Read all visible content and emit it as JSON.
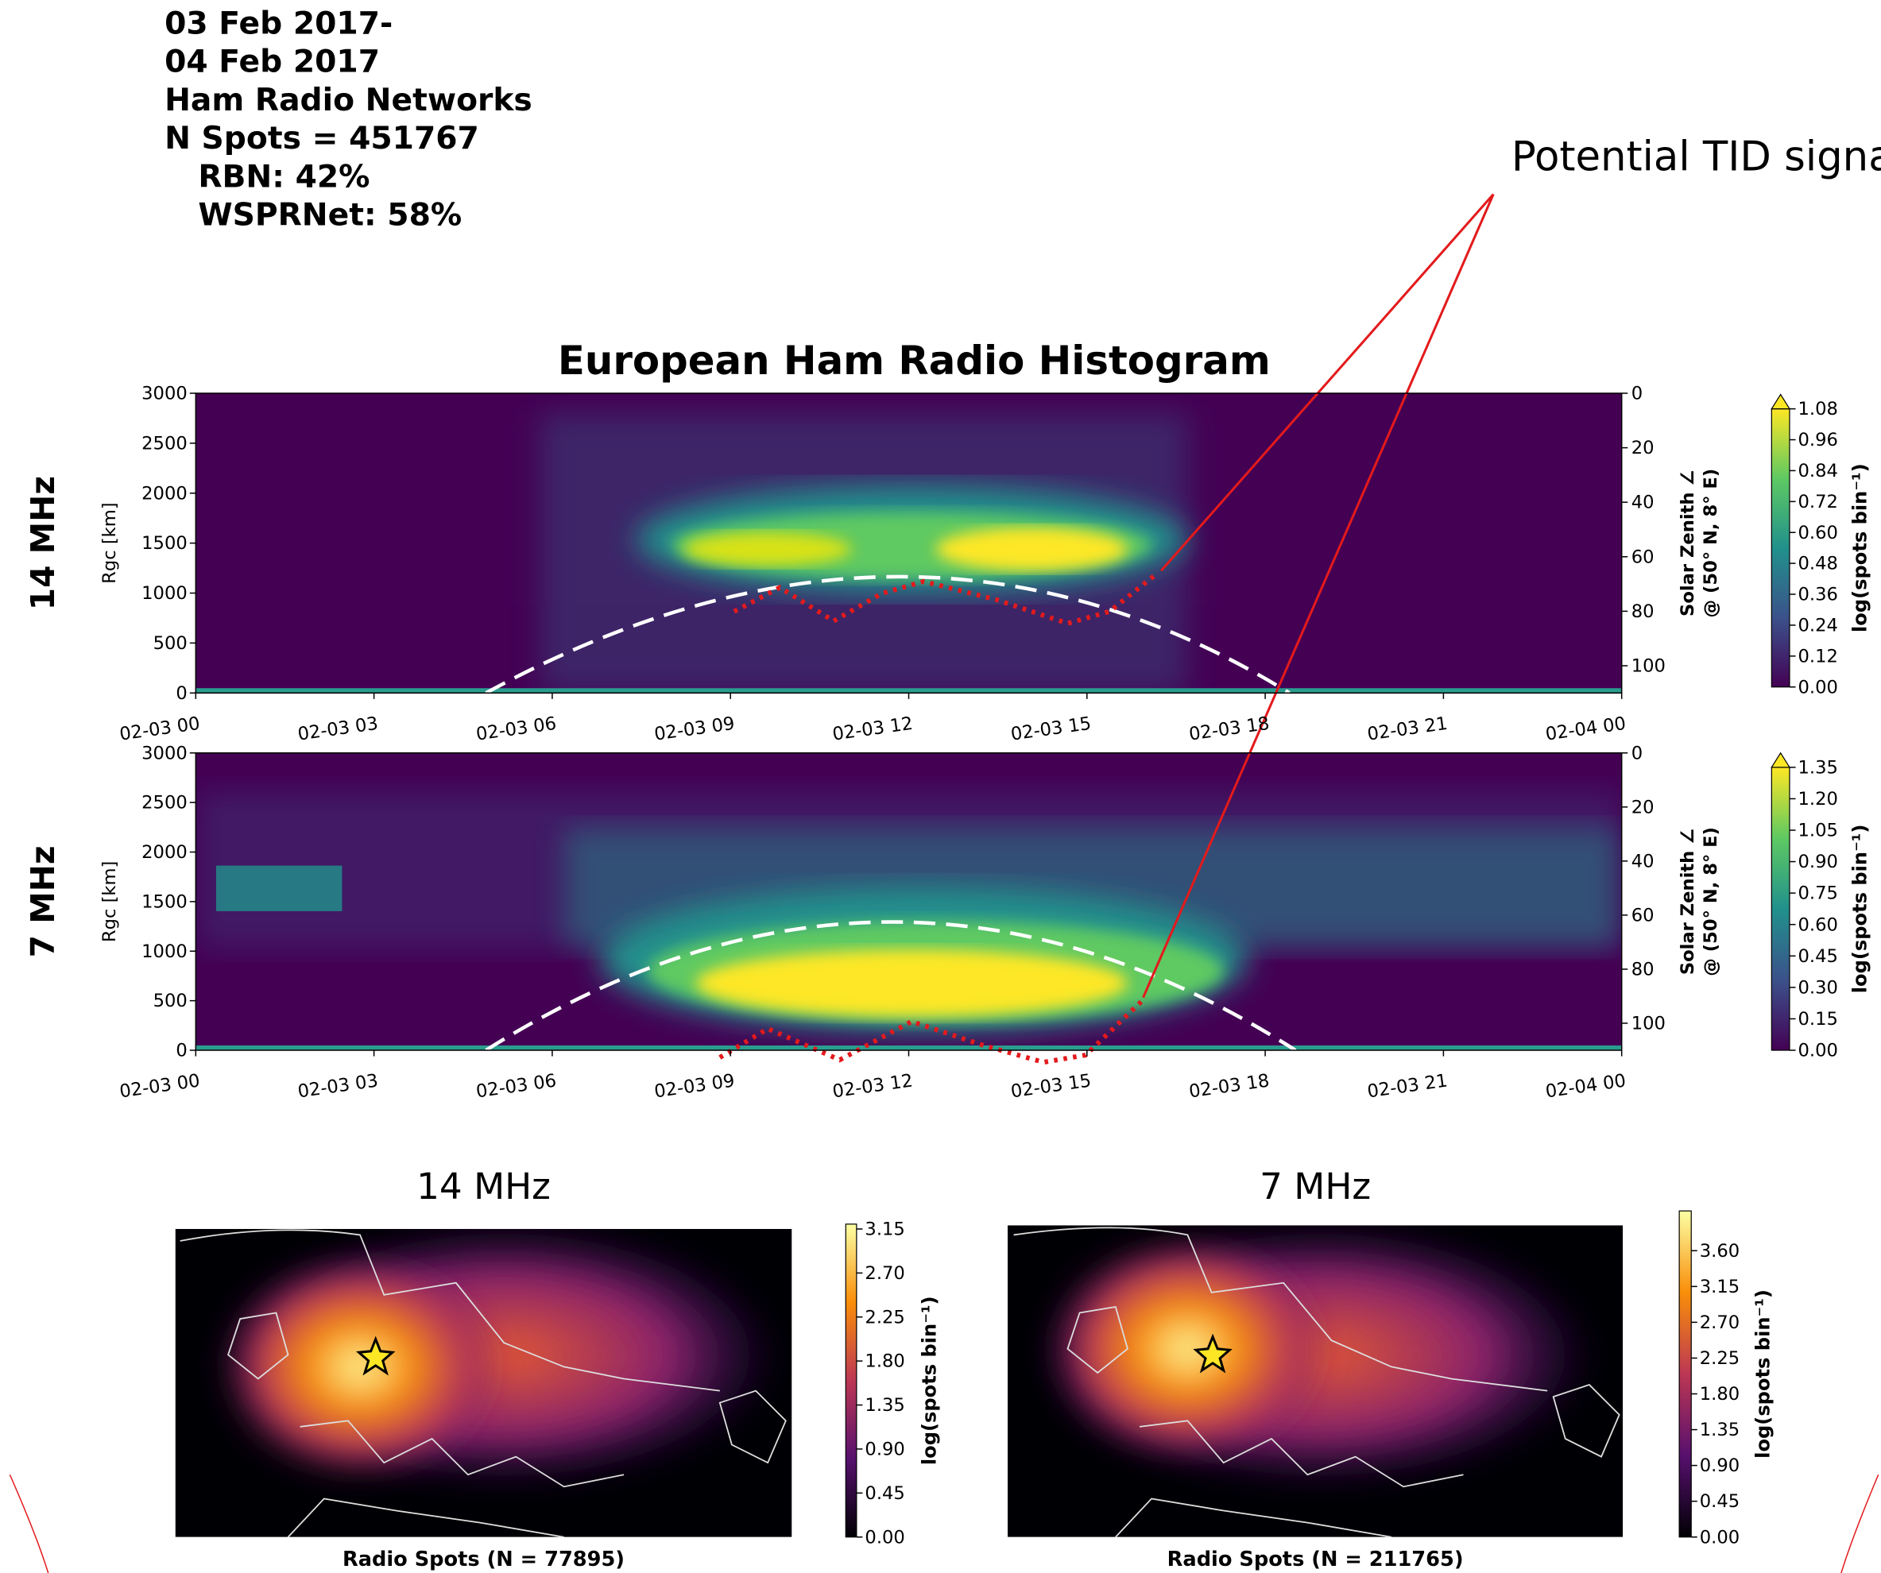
{
  "header": {
    "lines": [
      "03 Feb 2017-",
      "04 Feb 2017",
      "Ham Radio Networks",
      "N Spots = 451767",
      "RBN: 42%",
      "WSPRNet: 58%"
    ]
  },
  "annotation": "Potential TID signature",
  "title": "European Ham Radio Histogram",
  "chart_data": [
    {
      "type": "heatmap",
      "row_label": "14 MHz",
      "y_label": "Rgc [km]",
      "y2_label": [
        "Solar Zenith ∠",
        "@ (50° N, 8° E)"
      ],
      "xticks": [
        "02-03 00",
        "02-03 03",
        "02-03 06",
        "02-03 09",
        "02-03 12",
        "02-03 15",
        "02-03 18",
        "02-03 21",
        "02-04 00"
      ],
      "ylim": [
        0,
        3000
      ],
      "yticks": [
        0,
        500,
        1000,
        1500,
        2000,
        2500,
        3000
      ],
      "y2lim": [
        110,
        0
      ],
      "y2ticks": [
        0,
        20,
        40,
        60,
        80,
        100
      ],
      "colormap": "viridis",
      "colorbar_label": "log(spots bin⁻¹)",
      "clim": [
        0,
        1.08
      ],
      "cticks": [
        {
          "value": 0,
          "label": "0.00"
        },
        0.12,
        0.24,
        0.36,
        0.48,
        {
          "value": 0.6,
          "label": "0.60"
        },
        0.72,
        0.84,
        0.96,
        1.08
      ]
    },
    {
      "type": "heatmap",
      "row_label": "7 MHz",
      "y_label": "Rgc [km]",
      "y2_label": [
        "Solar Zenith ∠",
        "@ (50° N, 8° E)"
      ],
      "xticks": [
        "02-03 00",
        "02-03 03",
        "02-03 06",
        "02-03 09",
        "02-03 12",
        "02-03 15",
        "02-03 18",
        "02-03 21",
        "02-04 00"
      ],
      "ylim": [
        0,
        3000
      ],
      "yticks": [
        0,
        500,
        1000,
        1500,
        2000,
        2500,
        3000
      ],
      "y2lim": [
        110,
        0
      ],
      "y2ticks": [
        0,
        20,
        40,
        60,
        80,
        100
      ],
      "colormap": "viridis",
      "colorbar_label": "log(spots bin⁻¹)",
      "clim": [
        0,
        1.35
      ],
      "cticks": [
        {
          "value": 0,
          "label": "0.00"
        },
        0.15,
        {
          "value": 0.3,
          "label": "0.30"
        },
        0.45,
        {
          "value": 0.6,
          "label": "0.60"
        },
        0.75,
        {
          "value": 0.9,
          "label": "0.90"
        },
        1.05,
        {
          "value": 1.2,
          "label": "1.20"
        },
        1.35
      ]
    },
    {
      "type": "map",
      "title": "14 MHz",
      "caption": "Radio Spots (N = 77895)",
      "colormap": "inferno",
      "colorbar_label": "log(spots bin⁻¹)",
      "clim": [
        0,
        3.2
      ],
      "cticks": [
        {
          "value": 0,
          "label": "0.00"
        },
        0.45,
        {
          "value": 0.9,
          "label": "0.90"
        },
        1.35,
        {
          "value": 1.8,
          "label": "1.80"
        },
        2.25,
        {
          "value": 2.7,
          "label": "2.70"
        },
        3.15
      ]
    },
    {
      "type": "map",
      "title": "7 MHz",
      "caption": "Radio Spots (N = 211765)",
      "colormap": "inferno",
      "colorbar_label": "log(spots bin⁻¹)",
      "clim": [
        0,
        4.1
      ],
      "cticks": [
        {
          "value": 0,
          "label": "0.00"
        },
        0.45,
        {
          "value": 0.9,
          "label": "0.90"
        },
        1.35,
        {
          "value": 1.8,
          "label": "1.80"
        },
        2.25,
        {
          "value": 2.7,
          "label": "2.70"
        },
        3.15,
        {
          "value": 3.6,
          "label": "3.60"
        }
      ]
    }
  ]
}
